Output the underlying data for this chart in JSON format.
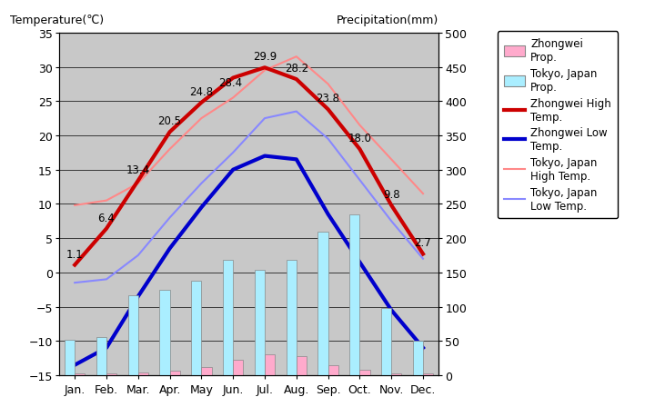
{
  "months": [
    "Jan.",
    "Feb.",
    "Mar.",
    "Apr.",
    "May",
    "Jun.",
    "Jul.",
    "Aug.",
    "Sep.",
    "Oct.",
    "Nov.",
    "Dec."
  ],
  "zhongwei_high": [
    1.1,
    6.4,
    13.4,
    20.5,
    24.8,
    28.4,
    29.9,
    28.2,
    23.8,
    18.0,
    9.8,
    2.7
  ],
  "zhongwei_low": [
    -13.5,
    -11.0,
    -3.5,
    3.5,
    9.5,
    15.0,
    17.0,
    16.5,
    8.5,
    1.5,
    -5.5,
    -11.0
  ],
  "tokyo_high": [
    9.8,
    10.5,
    13.0,
    18.0,
    22.5,
    25.5,
    29.5,
    31.5,
    27.5,
    21.5,
    16.5,
    11.5
  ],
  "tokyo_low": [
    -1.5,
    -1.0,
    2.5,
    8.0,
    13.0,
    17.5,
    22.5,
    23.5,
    19.5,
    13.5,
    7.5,
    2.0
  ],
  "zhongwei_precip_mm": [
    2,
    2,
    4,
    6,
    12,
    22,
    30,
    28,
    14,
    8,
    2,
    2
  ],
  "tokyo_precip_mm": [
    52,
    56,
    117,
    125,
    138,
    168,
    154,
    168,
    210,
    235,
    98,
    51
  ],
  "zhongwei_high_labels": [
    "1.1",
    "6.4",
    "13.4",
    "20.5",
    "24.8",
    "28.4",
    "29.9",
    "28.2",
    "23.8",
    "18.0",
    "9.8",
    "2.7"
  ],
  "temp_ylim": [
    -15,
    35
  ],
  "temp_yticks": [
    -15,
    -10,
    -5,
    0,
    5,
    10,
    15,
    20,
    25,
    30,
    35
  ],
  "precip_ylim": [
    0,
    500
  ],
  "precip_yticks": [
    0,
    50,
    100,
    150,
    200,
    250,
    300,
    350,
    400,
    450,
    500
  ],
  "bg_color": "#c8c8c8",
  "zhongwei_high_color": "#cc0000",
  "zhongwei_low_color": "#0000cc",
  "tokyo_high_color": "#ff8888",
  "tokyo_low_color": "#8888ff",
  "zhongwei_precip_color": "#ffaacc",
  "tokyo_precip_color": "#aaeeff",
  "ylabel_left": "Temperature(℃)",
  "ylabel_right": "Precipitation(mm)",
  "legend_labels": [
    "Zhongwei\nProp.",
    "Tokyo, Japan\nProp.",
    "Zhongwei High\nTemp.",
    "Zhongwei Low\nTemp.",
    "Tokyo, Japan\nHigh Temp.",
    "Tokyo, Japan\nLow Temp."
  ]
}
